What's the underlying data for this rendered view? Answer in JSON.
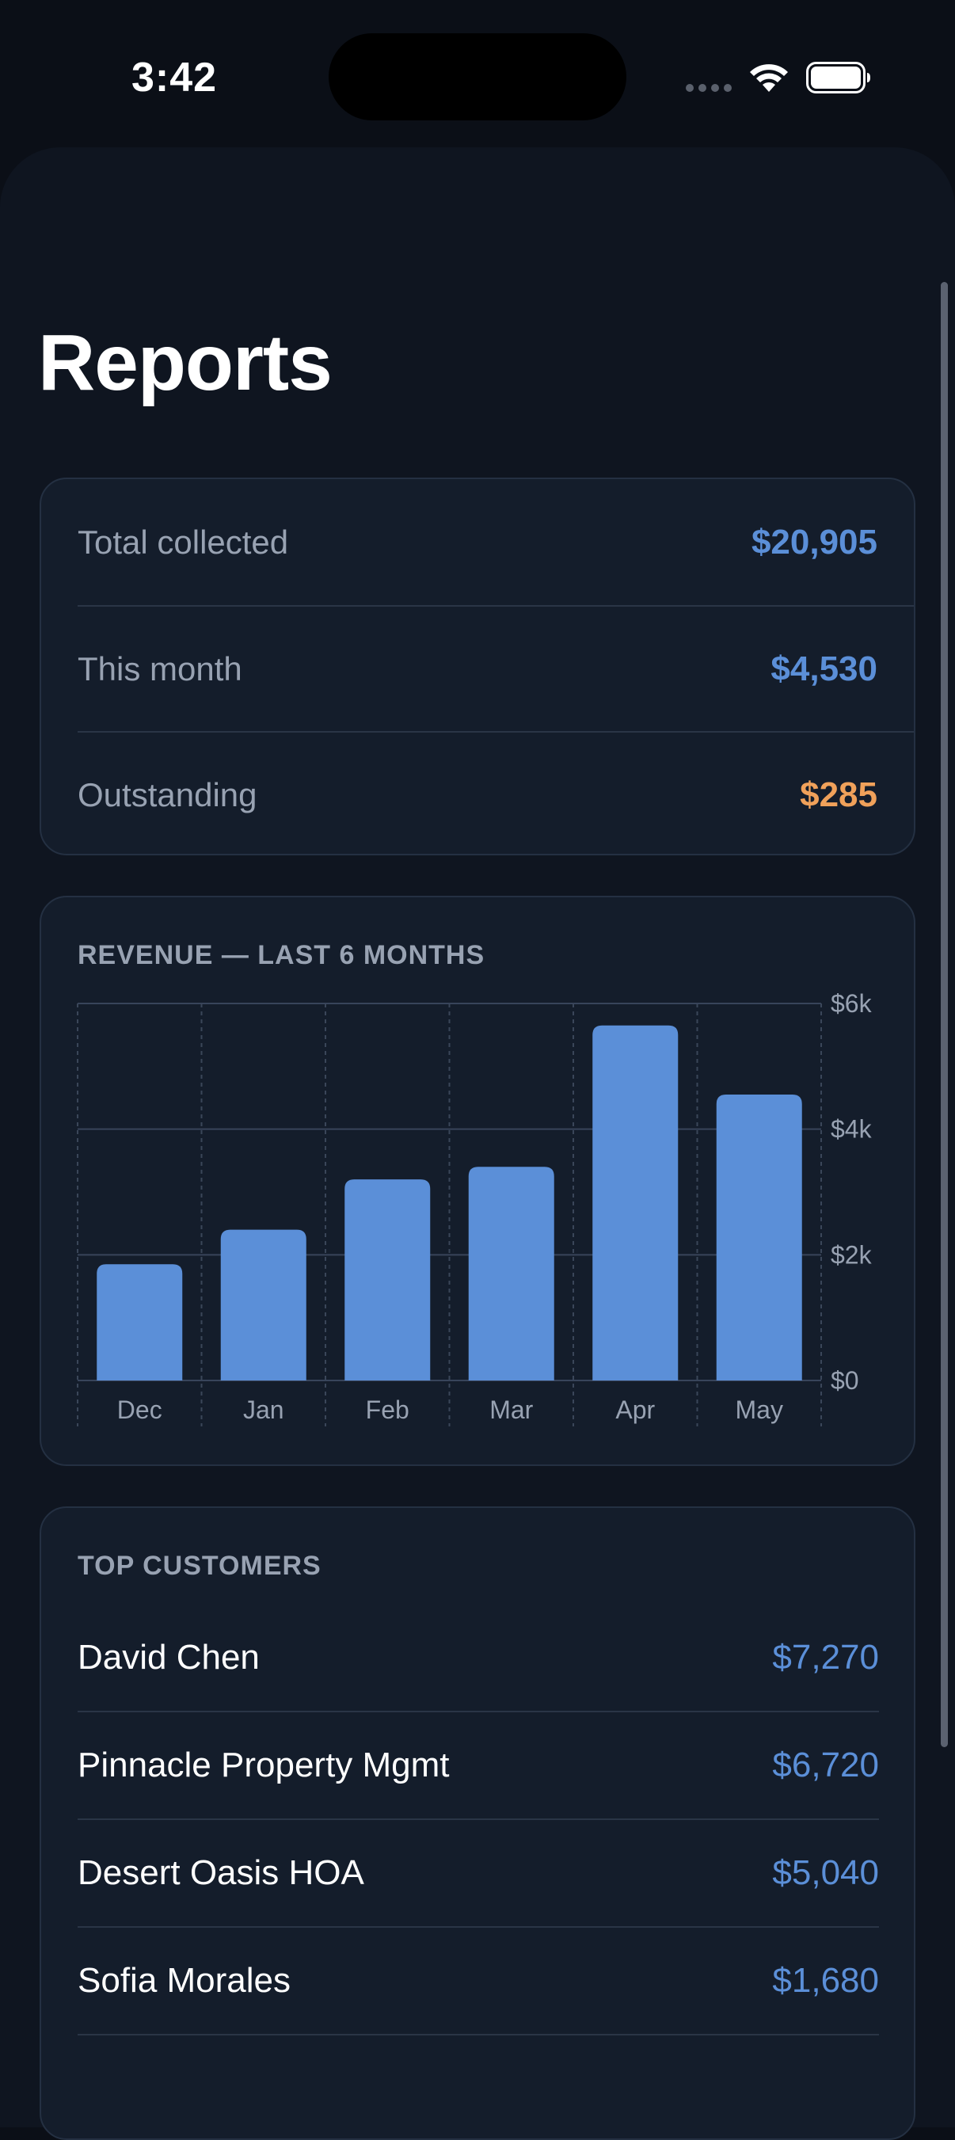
{
  "status_bar": {
    "time": "3:42",
    "icons": [
      "cellular-signal-icon",
      "wifi-icon",
      "battery-icon"
    ]
  },
  "page": {
    "title": "Reports"
  },
  "summary": {
    "rows": [
      {
        "label": "Total collected",
        "value": "$20,905",
        "color": "#5b8fd8"
      },
      {
        "label": "This month",
        "value": "$4,530",
        "color": "#5b8fd8"
      },
      {
        "label": "Outstanding",
        "value": "$285",
        "color": "#f0a15a"
      }
    ]
  },
  "revenue": {
    "section_label": "REVENUE — LAST 6 MONTHS",
    "chart_data": {
      "type": "bar",
      "categories": [
        "Dec",
        "Jan",
        "Feb",
        "Mar",
        "Apr",
        "May"
      ],
      "values": [
        1850,
        2400,
        3200,
        3400,
        5650,
        4550
      ],
      "ylim": [
        0,
        6000
      ],
      "yticks": [
        {
          "value": 0,
          "label": "$0"
        },
        {
          "value": 2000,
          "label": "$2k"
        },
        {
          "value": 4000,
          "label": "$4k"
        },
        {
          "value": 6000,
          "label": "$6k"
        }
      ],
      "title": "",
      "xlabel": "",
      "ylabel": "",
      "grid": true,
      "bar_color": "#5b8fd8"
    }
  },
  "top_customers": {
    "section_label": "TOP CUSTOMERS",
    "rows": [
      {
        "name": "David Chen",
        "amount": "$7,270"
      },
      {
        "name": "Pinnacle Property Mgmt",
        "amount": "$6,720"
      },
      {
        "name": "Desert Oasis HOA",
        "amount": "$5,040"
      },
      {
        "name": "Sofia Morales",
        "amount": "$1,680"
      }
    ]
  },
  "colors": {
    "background": "#0b0f17",
    "card": "#141d2b",
    "accent": "#5b8fd8",
    "warning": "#f0a15a",
    "muted_text": "#98a2b2"
  }
}
